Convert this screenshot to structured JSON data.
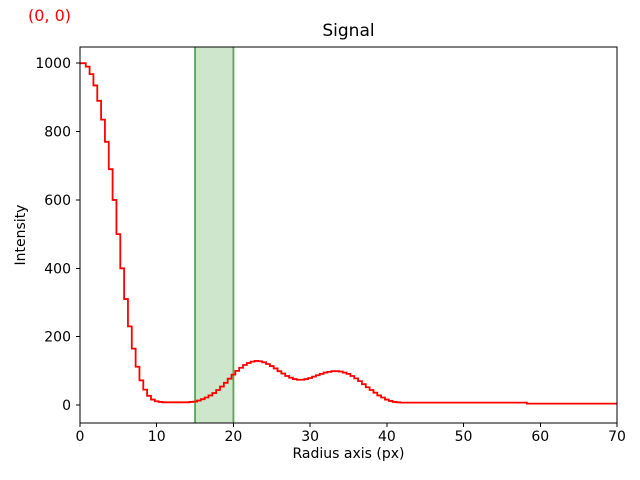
{
  "annotation": {
    "text": "(0, 0)",
    "color": "#ff0000"
  },
  "chart_data": {
    "type": "line",
    "title": "Signal",
    "xlabel": "Radius axis (px)",
    "ylabel": "Intensity",
    "xlim": [
      0,
      70
    ],
    "ylim": [
      -52.6,
      1047.4
    ],
    "xticks": [
      0,
      10,
      20,
      30,
      40,
      50,
      60,
      70
    ],
    "yticks": [
      0,
      200,
      400,
      600,
      800,
      1000
    ],
    "grid": false,
    "legend": "none",
    "line_color": "#ff0000",
    "line_style": "steps-mid",
    "highlight_span": {
      "from": 15,
      "to": 20,
      "fill": "#cde6cc",
      "edge": "#55a855"
    },
    "x_start": 0,
    "x_step": 0.5,
    "y": [
      1000,
      1000,
      990,
      968,
      935,
      890,
      835,
      770,
      690,
      600,
      500,
      400,
      310,
      230,
      165,
      112,
      72,
      45,
      27,
      16,
      11,
      9,
      8,
      8,
      8,
      8,
      8,
      8,
      8,
      9,
      10,
      13,
      17,
      22,
      28,
      35,
      44,
      54,
      65,
      77,
      89,
      100,
      109,
      117,
      123,
      127,
      129,
      128,
      125,
      120,
      114,
      107,
      99,
      92,
      85,
      80,
      76,
      74,
      74,
      76,
      79,
      83,
      87,
      91,
      95,
      97,
      99,
      99,
      98,
      95,
      91,
      85,
      78,
      70,
      61,
      52,
      44,
      36,
      28,
      22,
      16,
      12,
      9,
      8,
      7,
      7,
      7,
      7,
      7,
      7,
      7,
      7,
      7,
      7,
      7,
      7,
      7,
      7,
      7,
      7,
      7,
      7,
      7,
      7,
      7,
      7,
      7,
      7,
      7,
      7,
      7,
      7,
      7,
      7,
      7,
      7,
      7,
      4,
      4,
      4,
      4,
      4,
      4,
      4,
      4,
      4,
      4,
      4,
      4,
      4,
      4,
      4,
      4,
      4,
      4,
      4,
      4,
      4,
      4,
      4,
      4
    ]
  }
}
